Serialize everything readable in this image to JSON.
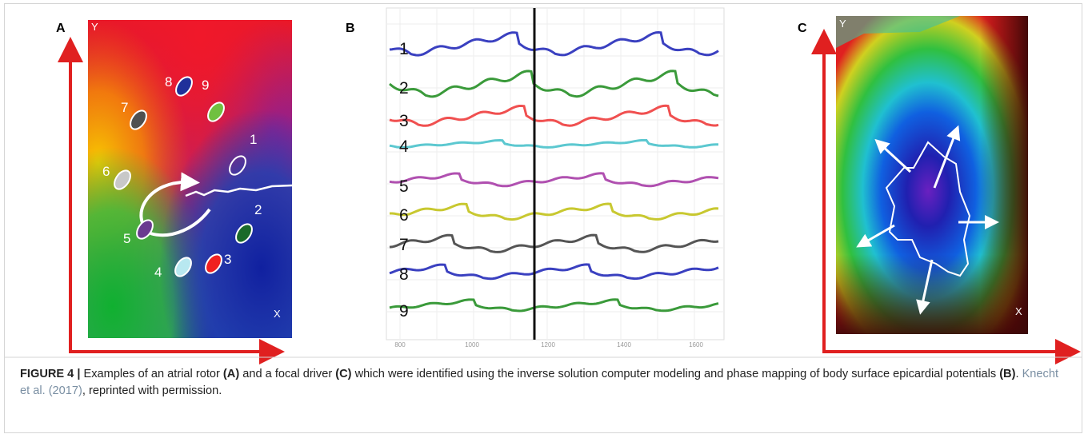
{
  "panels": [
    {
      "label": "A",
      "axis_y": "Y",
      "axis_x": "X",
      "points": [
        "1",
        "2",
        "3",
        "4",
        "5",
        "6",
        "7",
        "8",
        "9"
      ]
    },
    {
      "label": "B",
      "traces": [
        "1",
        "2",
        "3",
        "4",
        "5",
        "6",
        "7",
        "8",
        "9"
      ],
      "x_ticks": [
        "800",
        "1000",
        "1200",
        "1400",
        "1600"
      ]
    },
    {
      "label": "C",
      "axis_y": "Y",
      "axis_x": "X"
    }
  ],
  "caption": {
    "label": "FIGURE 4 |",
    "parts": [
      "Examples of an atrial rotor",
      "(A)",
      "and a focal driver",
      "(C)",
      "which were identified using the inverse solution computer modeling and phase mapping of body surface epicardial potentials",
      "(B)",
      ".",
      "Knecht et al. (2017)",
      ", reprinted with permission."
    ]
  }
}
